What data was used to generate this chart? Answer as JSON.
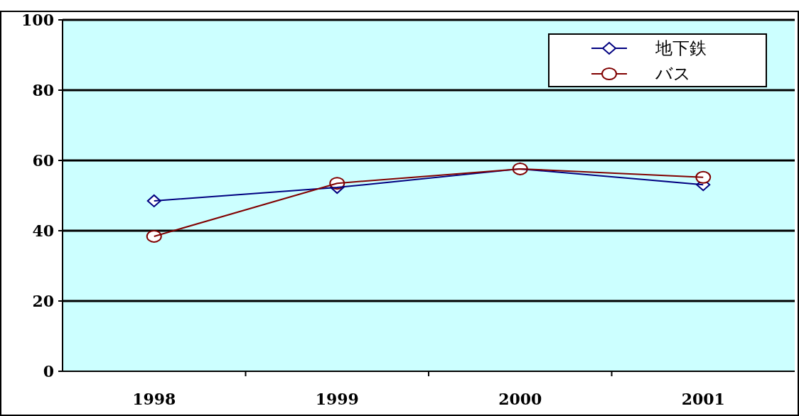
{
  "chart_data": {
    "type": "line",
    "categories": [
      "1998",
      "1999",
      "2000",
      "2001"
    ],
    "series": [
      {
        "name": "地下鉄",
        "color": "#000080",
        "marker": "diamond",
        "values": [
          48.5,
          52.3,
          57.6,
          53.1
        ]
      },
      {
        "name": "バス",
        "color": "#800000",
        "marker": "circle",
        "values": [
          38.4,
          53.5,
          57.6,
          55.2
        ]
      }
    ],
    "ylim": [
      0,
      100
    ],
    "yticks": [
      0,
      20,
      40,
      60,
      80,
      100
    ],
    "grid": "y",
    "legend": "top right"
  }
}
